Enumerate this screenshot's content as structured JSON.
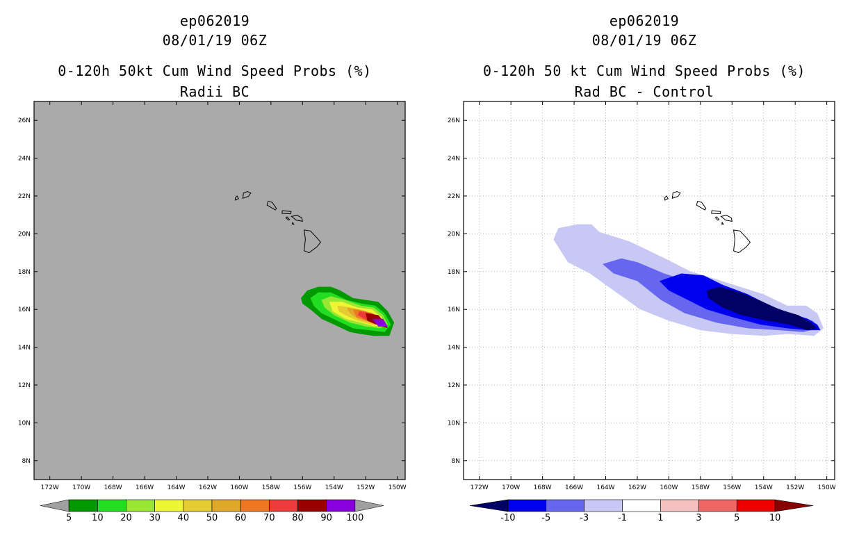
{
  "chart_data": [
    {
      "type": "heatmap",
      "storm": "ep062019",
      "datetime": "08/01/19 06Z",
      "title": "0-120h 50kt Cum Wind Speed Probs (%)",
      "subtitle": "Radii BC",
      "x_ticks": [
        "172W",
        "170W",
        "168W",
        "166W",
        "164W",
        "162W",
        "160W",
        "158W",
        "156W",
        "154W",
        "152W",
        "150W"
      ],
      "y_ticks": [
        "26N",
        "24N",
        "22N",
        "20N",
        "18N",
        "16N",
        "14N",
        "12N",
        "10N",
        "8N"
      ],
      "xlim": [
        -173,
        -149.5
      ],
      "ylim": [
        7,
        27
      ],
      "grid": false,
      "background": "#aaaaaa",
      "colorbar": {
        "labels": [
          "5",
          "10",
          "20",
          "30",
          "40",
          "50",
          "60",
          "70",
          "80",
          "90",
          "100"
        ],
        "colors": [
          "#a0a0a0",
          "#009a00",
          "#22dd22",
          "#99e633",
          "#eef533",
          "#e6cc33",
          "#e0a828",
          "#ee7722",
          "#ee3c3c",
          "#990000",
          "#8800dd",
          "#a0a0a0"
        ]
      },
      "contours": [
        {
          "level": 5,
          "color": "#009a00",
          "lonlat": [
            [
              -156.1,
              16.6
            ],
            [
              -155.7,
              17.0
            ],
            [
              -155.0,
              17.2
            ],
            [
              -154.2,
              17.2
            ],
            [
              -153.6,
              17.0
            ],
            [
              -152.8,
              16.6
            ],
            [
              -152.0,
              16.5
            ],
            [
              -151.2,
              16.4
            ],
            [
              -150.6,
              15.9
            ],
            [
              -150.2,
              15.3
            ],
            [
              -150.5,
              14.6
            ],
            [
              -151.5,
              14.6
            ],
            [
              -152.3,
              14.7
            ],
            [
              -153.0,
              14.8
            ],
            [
              -154.0,
              15.2
            ],
            [
              -154.8,
              15.5
            ],
            [
              -155.5,
              16.0
            ],
            [
              -156.0,
              16.3
            ]
          ]
        },
        {
          "level": 10,
          "color": "#22dd22",
          "lonlat": [
            [
              -155.5,
              16.6
            ],
            [
              -155.0,
              16.9
            ],
            [
              -154.2,
              16.9
            ],
            [
              -153.2,
              16.5
            ],
            [
              -152.2,
              16.3
            ],
            [
              -151.4,
              16.2
            ],
            [
              -150.8,
              15.8
            ],
            [
              -150.4,
              15.2
            ],
            [
              -150.8,
              14.8
            ],
            [
              -151.8,
              14.9
            ],
            [
              -152.8,
              15.0
            ],
            [
              -153.8,
              15.4
            ],
            [
              -154.8,
              15.8
            ],
            [
              -155.3,
              16.2
            ]
          ]
        },
        {
          "level": 20,
          "color": "#99e633",
          "lonlat": [
            [
              -154.8,
              16.5
            ],
            [
              -154.2,
              16.7
            ],
            [
              -153.3,
              16.5
            ],
            [
              -152.3,
              16.2
            ],
            [
              -151.5,
              16.1
            ],
            [
              -150.9,
              15.7
            ],
            [
              -150.6,
              15.2
            ],
            [
              -151.1,
              15.0
            ],
            [
              -152.0,
              15.1
            ],
            [
              -153.0,
              15.3
            ],
            [
              -154.0,
              15.7
            ],
            [
              -154.6,
              16.1
            ]
          ]
        },
        {
          "level": 30,
          "color": "#eef533",
          "lonlat": [
            [
              -154.3,
              16.4
            ],
            [
              -153.5,
              16.4
            ],
            [
              -152.5,
              16.1
            ],
            [
              -151.6,
              16.0
            ],
            [
              -151.0,
              15.6
            ],
            [
              -150.8,
              15.2
            ],
            [
              -151.4,
              15.1
            ],
            [
              -152.3,
              15.3
            ],
            [
              -153.3,
              15.5
            ],
            [
              -154.1,
              15.9
            ]
          ]
        },
        {
          "level": 40,
          "color": "#e6cc33",
          "lonlat": [
            [
              -153.8,
              16.2
            ],
            [
              -152.9,
              16.1
            ],
            [
              -152.0,
              15.9
            ],
            [
              -151.3,
              15.7
            ],
            [
              -150.9,
              15.3
            ],
            [
              -151.6,
              15.2
            ],
            [
              -152.5,
              15.4
            ],
            [
              -153.3,
              15.7
            ],
            [
              -153.7,
              15.9
            ]
          ]
        },
        {
          "level": 50,
          "color": "#e0a828",
          "lonlat": [
            [
              -153.2,
              16.1
            ],
            [
              -152.4,
              16.0
            ],
            [
              -151.6,
              15.8
            ],
            [
              -151.0,
              15.4
            ],
            [
              -151.7,
              15.3
            ],
            [
              -152.5,
              15.5
            ],
            [
              -153.0,
              15.8
            ]
          ]
        },
        {
          "level": 60,
          "color": "#ee7722",
          "lonlat": [
            [
              -152.8,
              16.0
            ],
            [
              -152.0,
              15.9
            ],
            [
              -151.3,
              15.6
            ],
            [
              -151.2,
              15.3
            ],
            [
              -151.9,
              15.4
            ],
            [
              -152.6,
              15.6
            ]
          ]
        },
        {
          "level": 70,
          "color": "#ee3c3c",
          "lonlat": [
            [
              -152.4,
              15.9
            ],
            [
              -151.6,
              15.8
            ],
            [
              -151.0,
              15.5
            ],
            [
              -150.8,
              15.2
            ],
            [
              -151.4,
              15.2
            ],
            [
              -152.1,
              15.5
            ],
            [
              -152.5,
              15.7
            ]
          ]
        },
        {
          "level": 80,
          "color": "#990000",
          "lonlat": [
            [
              -152.0,
              15.8
            ],
            [
              -151.2,
              15.7
            ],
            [
              -150.8,
              15.3
            ],
            [
              -150.6,
              15.0
            ],
            [
              -151.3,
              15.2
            ],
            [
              -151.9,
              15.4
            ]
          ]
        },
        {
          "level": 90,
          "color": "#8800dd",
          "lonlat": [
            [
              -151.6,
              15.5
            ],
            [
              -150.9,
              15.5
            ],
            [
              -150.6,
              15.1
            ],
            [
              -151.2,
              15.1
            ]
          ]
        }
      ]
    },
    {
      "type": "heatmap",
      "storm": "ep062019",
      "datetime": "08/01/19 06Z",
      "title": "0-120h 50 kt Cum Wind Speed Probs (%)",
      "subtitle": "Rad BC - Control",
      "x_ticks": [
        "172W",
        "170W",
        "168W",
        "166W",
        "164W",
        "162W",
        "160W",
        "158W",
        "156W",
        "154W",
        "152W",
        "150W"
      ],
      "y_ticks": [
        "26N",
        "24N",
        "22N",
        "20N",
        "18N",
        "16N",
        "14N",
        "12N",
        "10N",
        "8N"
      ],
      "xlim": [
        -173,
        -149.5
      ],
      "ylim": [
        7,
        27
      ],
      "grid": true,
      "background": "#ffffff",
      "colorbar": {
        "labels": [
          "-10",
          "-5",
          "-3",
          "-1",
          "1",
          "3",
          "5",
          "10"
        ],
        "colors": [
          "#000066",
          "#0000ee",
          "#6666ee",
          "#c8c8f5",
          "#ffffff",
          "#f5c0c0",
          "#ee6666",
          "#ee0000",
          "#880000"
        ]
      },
      "contours": [
        {
          "level": -1,
          "color": "#c8c8f5",
          "lonlat": [
            [
              -167.3,
              19.7
            ],
            [
              -167.0,
              20.3
            ],
            [
              -165.8,
              20.5
            ],
            [
              -164.9,
              20.5
            ],
            [
              -164.4,
              20.1
            ],
            [
              -162.5,
              19.6
            ],
            [
              -160.5,
              18.8
            ],
            [
              -158.6,
              18.0
            ],
            [
              -157.0,
              17.6
            ],
            [
              -155.5,
              17.2
            ],
            [
              -154.0,
              16.8
            ],
            [
              -152.5,
              16.2
            ],
            [
              -151.3,
              16.2
            ],
            [
              -150.6,
              15.8
            ],
            [
              -150.2,
              15.0
            ],
            [
              -150.8,
              14.6
            ],
            [
              -152.5,
              14.7
            ],
            [
              -154.0,
              14.6
            ],
            [
              -156.0,
              14.7
            ],
            [
              -158.0,
              14.9
            ],
            [
              -160.0,
              15.4
            ],
            [
              -161.8,
              16.0
            ],
            [
              -163.5,
              17.0
            ],
            [
              -165.0,
              17.9
            ],
            [
              -166.4,
              18.5
            ]
          ]
        },
        {
          "level": -3,
          "color": "#6666ee",
          "lonlat": [
            [
              -164.2,
              18.4
            ],
            [
              -163.0,
              18.7
            ],
            [
              -162.0,
              18.5
            ],
            [
              -160.3,
              17.9
            ],
            [
              -158.8,
              17.5
            ],
            [
              -157.0,
              17.0
            ],
            [
              -155.5,
              16.6
            ],
            [
              -153.8,
              16.2
            ],
            [
              -152.2,
              15.7
            ],
            [
              -150.9,
              15.4
            ],
            [
              -150.5,
              15.0
            ],
            [
              -151.5,
              14.8
            ],
            [
              -153.0,
              14.9
            ],
            [
              -155.0,
              15.0
            ],
            [
              -157.0,
              15.3
            ],
            [
              -159.0,
              15.8
            ],
            [
              -160.5,
              16.5
            ],
            [
              -162.0,
              17.5
            ],
            [
              -163.5,
              17.9
            ]
          ]
        },
        {
          "level": -5,
          "color": "#0000ee",
          "lonlat": [
            [
              -160.6,
              17.5
            ],
            [
              -159.2,
              17.9
            ],
            [
              -157.8,
              17.8
            ],
            [
              -156.6,
              17.3
            ],
            [
              -155.0,
              16.8
            ],
            [
              -153.6,
              16.2
            ],
            [
              -152.3,
              15.8
            ],
            [
              -151.2,
              15.5
            ],
            [
              -150.6,
              15.2
            ],
            [
              -150.4,
              14.9
            ],
            [
              -151.2,
              14.9
            ],
            [
              -152.5,
              15.0
            ],
            [
              -154.2,
              15.2
            ],
            [
              -156.0,
              15.6
            ],
            [
              -157.6,
              16.0
            ],
            [
              -158.8,
              16.5
            ],
            [
              -160.0,
              17.0
            ]
          ]
        },
        {
          "level": -10,
          "color": "#000066",
          "lonlat": [
            [
              -157.6,
              17.0
            ],
            [
              -156.8,
              17.2
            ],
            [
              -155.5,
              16.9
            ],
            [
              -154.3,
              16.5
            ],
            [
              -153.0,
              16.0
            ],
            [
              -151.8,
              15.7
            ],
            [
              -151.0,
              15.3
            ],
            [
              -150.6,
              15.0
            ],
            [
              -151.2,
              14.9
            ],
            [
              -152.4,
              15.2
            ],
            [
              -153.8,
              15.4
            ],
            [
              -155.4,
              15.7
            ],
            [
              -156.6,
              16.1
            ],
            [
              -157.5,
              16.6
            ]
          ]
        }
      ]
    }
  ]
}
